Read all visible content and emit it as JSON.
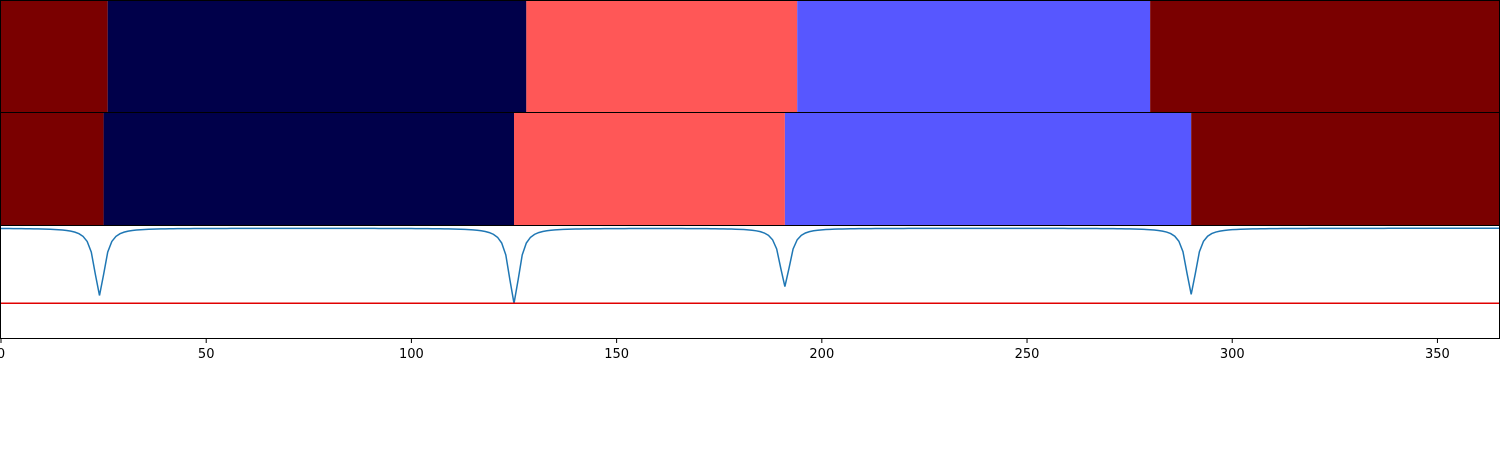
{
  "chart_data": [
    {
      "type": "heatmap",
      "panel": "top",
      "xlim": [
        0,
        365
      ],
      "segments": [
        {
          "start": 0,
          "end": 26,
          "color": "#7a0000"
        },
        {
          "start": 26,
          "end": 128,
          "color": "#00004a"
        },
        {
          "start": 128,
          "end": 194,
          "color": "#ff5757"
        },
        {
          "start": 194,
          "end": 280,
          "color": "#5757ff"
        },
        {
          "start": 280,
          "end": 365,
          "color": "#7a0000"
        }
      ]
    },
    {
      "type": "heatmap",
      "panel": "middle",
      "xlim": [
        0,
        365
      ],
      "segments": [
        {
          "start": 0,
          "end": 25,
          "color": "#7a0000"
        },
        {
          "start": 25,
          "end": 125,
          "color": "#00004a"
        },
        {
          "start": 125,
          "end": 191,
          "color": "#ff5757"
        },
        {
          "start": 191,
          "end": 290,
          "color": "#5757ff"
        },
        {
          "start": 290,
          "end": 365,
          "color": "#7a0000"
        }
      ]
    },
    {
      "type": "line",
      "panel": "bottom",
      "xlim": [
        0,
        365
      ],
      "ylim": [
        0,
        1
      ],
      "xticks": [
        0,
        50,
        100,
        150,
        200,
        250,
        300,
        350
      ],
      "grid": false,
      "series": [
        {
          "color": "#1f77b4",
          "baseline": 0.98,
          "dips": [
            {
              "center": 24,
              "depth": 0.6
            },
            {
              "center": 125,
              "depth": 0.67
            },
            {
              "center": 191,
              "depth": 0.52
            },
            {
              "center": 290,
              "depth": 0.59
            }
          ]
        },
        {
          "color": "#e00000",
          "constant": 0.31
        }
      ]
    }
  ]
}
